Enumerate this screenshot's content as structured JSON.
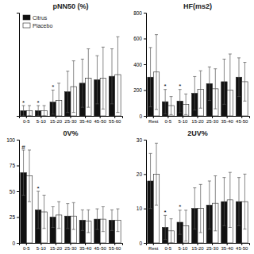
{
  "chart_data": [
    {
      "type": "bar",
      "title": "pNN50 (%)",
      "categories": [
        "0-5",
        "5-10",
        "15-20",
        "25-30",
        "35-40",
        "45-50",
        "55-60"
      ],
      "series": [
        {
          "name": "Citrus",
          "color": "#111111",
          "values": [
            1.5,
            1.5,
            4.0,
            7.0,
            9.5,
            10.5,
            11.5
          ],
          "errors": [
            1.5,
            1.5,
            3.5,
            6.0,
            7.0,
            7.0,
            8.0
          ]
        },
        {
          "name": "Placebo",
          "color": "#ffffff",
          "values": [
            1.5,
            1.5,
            4.5,
            8.5,
            11.0,
            11.0,
            12.0
          ],
          "errors": [
            1.5,
            1.5,
            5.0,
            7.5,
            8.5,
            9.0,
            11.0
          ]
        }
      ],
      "ylim": [
        0,
        30
      ],
      "yticks": [],
      "tick_labels": "x",
      "legend": "upper left",
      "annotations": [
        {
          "text": "*",
          "category": "0-5",
          "series": 0
        },
        {
          "text": "*",
          "category": "5-10",
          "series": 0
        },
        {
          "text": "*",
          "category": "15-20",
          "series": 0
        }
      ]
    },
    {
      "type": "bar",
      "title": "HF(ms2)",
      "categories": [
        "Rest",
        "0-5",
        "5-10",
        "15-20",
        "25-30",
        "35-40",
        "45-50"
      ],
      "series": [
        {
          "color": "#111111",
          "values": [
            300,
            110,
            115,
            175,
            250,
            265,
            300
          ],
          "errors": [
            230,
            95,
            90,
            130,
            130,
            175,
            150
          ]
        },
        {
          "color": "#ffffff",
          "values": [
            340,
            80,
            90,
            205,
            210,
            200,
            265
          ],
          "errors": [
            290,
            70,
            80,
            145,
            155,
            280,
            150
          ]
        }
      ],
      "ylim": [
        0,
        800
      ],
      "yticks": [
        0,
        200,
        400,
        600,
        800
      ],
      "annotations": [
        {
          "text": "*",
          "category": "0-5",
          "series": 0
        },
        {
          "text": "*",
          "category": "5-10",
          "series": 0
        }
      ]
    },
    {
      "type": "bar",
      "title": "0V%",
      "categories": [
        "0-5",
        "5-10",
        "15-20",
        "25-30",
        "35-40",
        "45-50",
        "55-60"
      ],
      "series": [
        {
          "color": "#111111",
          "values": [
            68,
            32,
            25,
            26,
            22,
            23,
            22
          ],
          "errors": [
            22,
            18,
            10,
            12,
            10,
            10,
            10
          ]
        },
        {
          "color": "#ffffff",
          "values": [
            65,
            30,
            27,
            26,
            21,
            23,
            22
          ],
          "errors": [
            25,
            16,
            13,
            13,
            11,
            12,
            11
          ]
        }
      ],
      "ylim": [
        0,
        100
      ],
      "yticks": [
        0,
        25,
        50,
        75,
        100
      ],
      "annotations": [
        {
          "text": "#",
          "category": "0-5",
          "series": 0
        },
        {
          "text": "*",
          "category": "5-10",
          "series": 0
        }
      ]
    },
    {
      "type": "bar",
      "title": "2UV%",
      "categories": [
        "Rest",
        "0-5",
        "5-10",
        "15-20",
        "25-30",
        "35-40",
        "45-50"
      ],
      "series": [
        {
          "color": "#111111",
          "values": [
            18,
            4.5,
            6.0,
            10.0,
            11.0,
            12.0,
            12.0
          ],
          "errors": [
            8,
            3.5,
            3.5,
            6.0,
            7.0,
            7.0,
            7.0
          ]
        },
        {
          "color": "#ffffff",
          "values": [
            20,
            3.5,
            5.0,
            10.0,
            11.5,
            12.5,
            12.0
          ],
          "errors": [
            9,
            3.5,
            4.5,
            7.0,
            8.0,
            8.0,
            8.0
          ]
        }
      ],
      "ylim": [
        0,
        30
      ],
      "yticks": [
        0,
        10,
        20,
        30
      ],
      "annotations": [
        {
          "text": "*",
          "category": "0-5",
          "series": 0
        },
        {
          "text": "*",
          "category": "5-10",
          "series": 0
        }
      ]
    }
  ]
}
